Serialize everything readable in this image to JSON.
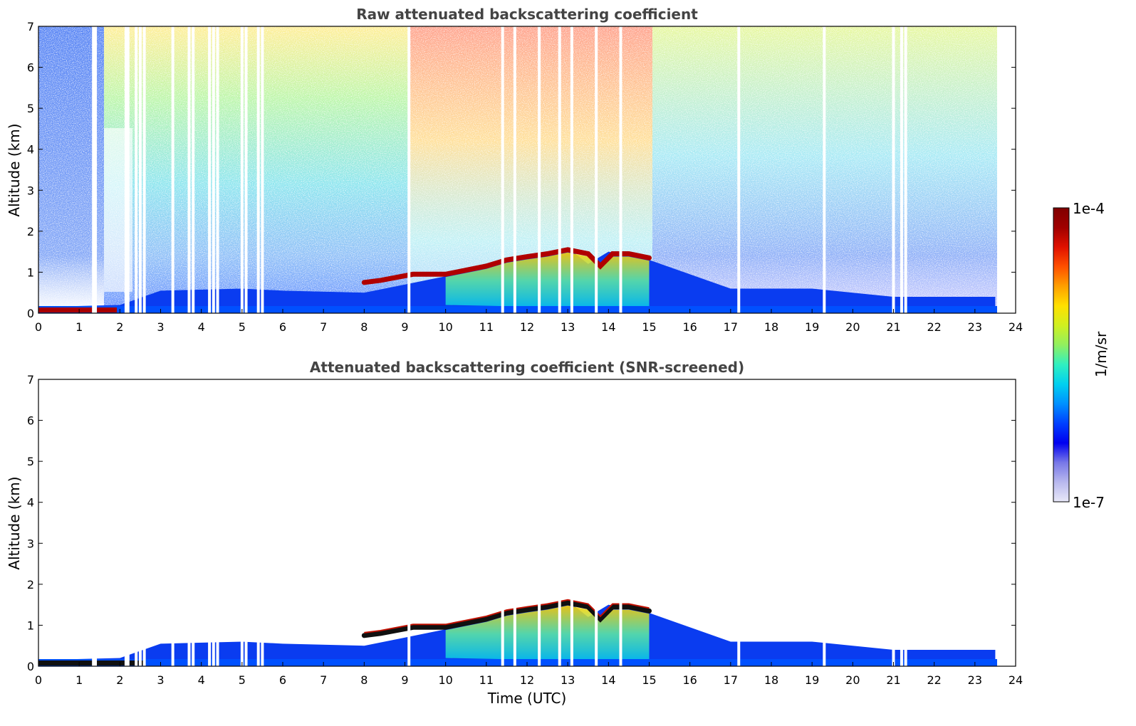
{
  "chart_data": [
    {
      "type": "heatmap",
      "title": "Raw attenuated backscattering coefficient",
      "xlabel": "",
      "ylabel": "Altitude (km)",
      "xlim": [
        0,
        24
      ],
      "ylim": [
        0,
        7
      ],
      "xticks": [
        "0",
        "1",
        "2",
        "3",
        "4",
        "5",
        "6",
        "7",
        "8",
        "9",
        "10",
        "11",
        "12",
        "13",
        "14",
        "15",
        "16",
        "17",
        "18",
        "19",
        "20",
        "21",
        "22",
        "23",
        "24"
      ],
      "yticks": [
        "0",
        "1",
        "2",
        "3",
        "4",
        "5",
        "6",
        "7"
      ],
      "data_coverage_hours": [
        0,
        23.5
      ],
      "data_gaps_hours": [
        1.35,
        1.4,
        2.15,
        2.2,
        2.4,
        2.5,
        2.6,
        3.3,
        3.7,
        3.8,
        4.2,
        4.3,
        4.4,
        5.0,
        5.1,
        5.4,
        5.5,
        9.1,
        11.4,
        11.7,
        12.3,
        12.8,
        13.1,
        13.7,
        14.3,
        17.2,
        19.3,
        21.0,
        21.2,
        21.3
      ],
      "boundary_layer_top_km": {
        "hours": [
          0,
          2,
          3,
          5,
          6,
          8,
          9,
          10,
          11,
          12,
          12.5,
          13,
          13.5,
          14,
          15,
          17,
          19,
          20,
          21,
          23.5
        ],
        "values": [
          0.15,
          0.2,
          0.55,
          0.6,
          0.55,
          0.5,
          0.7,
          0.9,
          1.2,
          1.4,
          1.5,
          1.6,
          1.2,
          1.5,
          1.3,
          0.6,
          0.6,
          0.5,
          0.4,
          0.4
        ]
      },
      "cloud_layer": {
        "hours": [
          8.0,
          8.4,
          9.2,
          10.0,
          10.5,
          11.0,
          11.5,
          12.0,
          12.5,
          13.0,
          13.5,
          13.8,
          14.1,
          14.5,
          15.0
        ],
        "altitude_km": [
          0.75,
          0.8,
          0.95,
          0.95,
          1.05,
          1.15,
          1.3,
          1.38,
          1.45,
          1.55,
          1.45,
          1.15,
          1.45,
          1.45,
          1.35
        ]
      }
    },
    {
      "type": "heatmap",
      "title": "Attenuated backscattering coefficient (SNR-screened)",
      "xlabel": "Time (UTC)",
      "ylabel": "Altitude (km)",
      "xlim": [
        0,
        24
      ],
      "ylim": [
        0,
        7
      ],
      "xticks": [
        "0",
        "1",
        "2",
        "3",
        "4",
        "5",
        "6",
        "7",
        "8",
        "9",
        "10",
        "11",
        "12",
        "13",
        "14",
        "15",
        "16",
        "17",
        "18",
        "19",
        "20",
        "21",
        "22",
        "23",
        "24"
      ],
      "yticks": [
        "0",
        "1",
        "2",
        "3",
        "4",
        "5",
        "6",
        "7"
      ]
    }
  ],
  "colorbar": {
    "max_label": "1e-4",
    "min_label": "1e-7",
    "label": "1/m/sr",
    "scale": "log",
    "range": [
      1e-07,
      0.0001
    ],
    "colormap": "jet",
    "colors": [
      "#e8e8f8",
      "#b8b8ee",
      "#7878e8",
      "#0000f0",
      "#0040ff",
      "#0090ff",
      "#00d0f0",
      "#30f0c0",
      "#90f060",
      "#d0f020",
      "#ffe000",
      "#ffa000",
      "#ff5000",
      "#e01000",
      "#a00000",
      "#800000"
    ]
  }
}
